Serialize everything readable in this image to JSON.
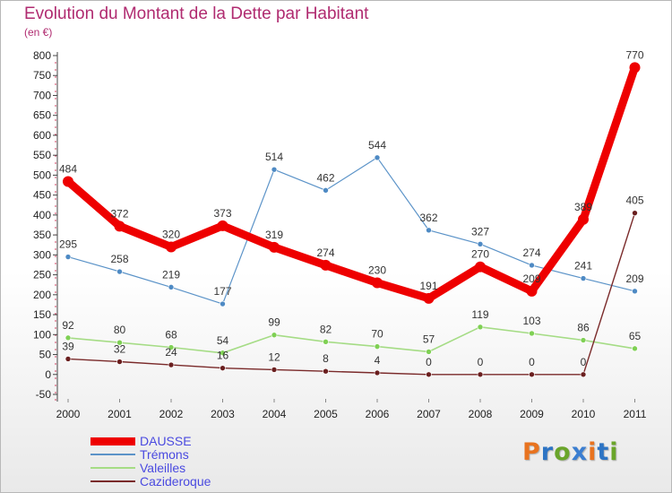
{
  "title": "Evolution du Montant de la Dette par Habitant",
  "subtitle": "(en €)",
  "logo": {
    "text": "Proxiti",
    "letters": [
      "P",
      "r",
      "o",
      "x",
      "i",
      "t",
      "i"
    ],
    "letter_colors": [
      "#e8731f",
      "#2d74c4",
      "#6aa52a",
      "#3b7ed1",
      "#e8731f",
      "#2d74c4",
      "#6aa52a"
    ]
  },
  "chart_data": {
    "type": "line",
    "title": "Evolution du Montant de la Dette par Habitant",
    "ylabel": "(en €)",
    "xlabel": "",
    "x": [
      "2000",
      "2001",
      "2002",
      "2003",
      "2004",
      "2005",
      "2006",
      "2007",
      "2008",
      "2009",
      "2010",
      "2011"
    ],
    "ylim": [
      -50,
      800
    ],
    "yticks": [
      -50,
      0,
      50,
      100,
      150,
      200,
      250,
      300,
      350,
      400,
      450,
      500,
      550,
      600,
      650,
      700,
      750,
      800
    ],
    "grid": false,
    "legend_position": "bottom-left",
    "series": [
      {
        "name": "DAUSSE",
        "color": "#ee0000",
        "values": [
          484,
          372,
          320,
          373,
          319,
          274,
          230,
          191,
          270,
          209,
          389,
          770
        ]
      },
      {
        "name": "Trémons",
        "color": "#5b93c8",
        "values": [
          295,
          258,
          219,
          177,
          514,
          462,
          544,
          362,
          327,
          274,
          241,
          209
        ]
      },
      {
        "name": "Valeilles",
        "color": "#a5dc85",
        "values": [
          92,
          80,
          68,
          54,
          99,
          82,
          70,
          57,
          119,
          103,
          86,
          65
        ]
      },
      {
        "name": "Cazideroque",
        "color": "#7a2a2a",
        "values": [
          39,
          32,
          24,
          16,
          12,
          8,
          4,
          0,
          0,
          0,
          0,
          405
        ]
      }
    ]
  }
}
